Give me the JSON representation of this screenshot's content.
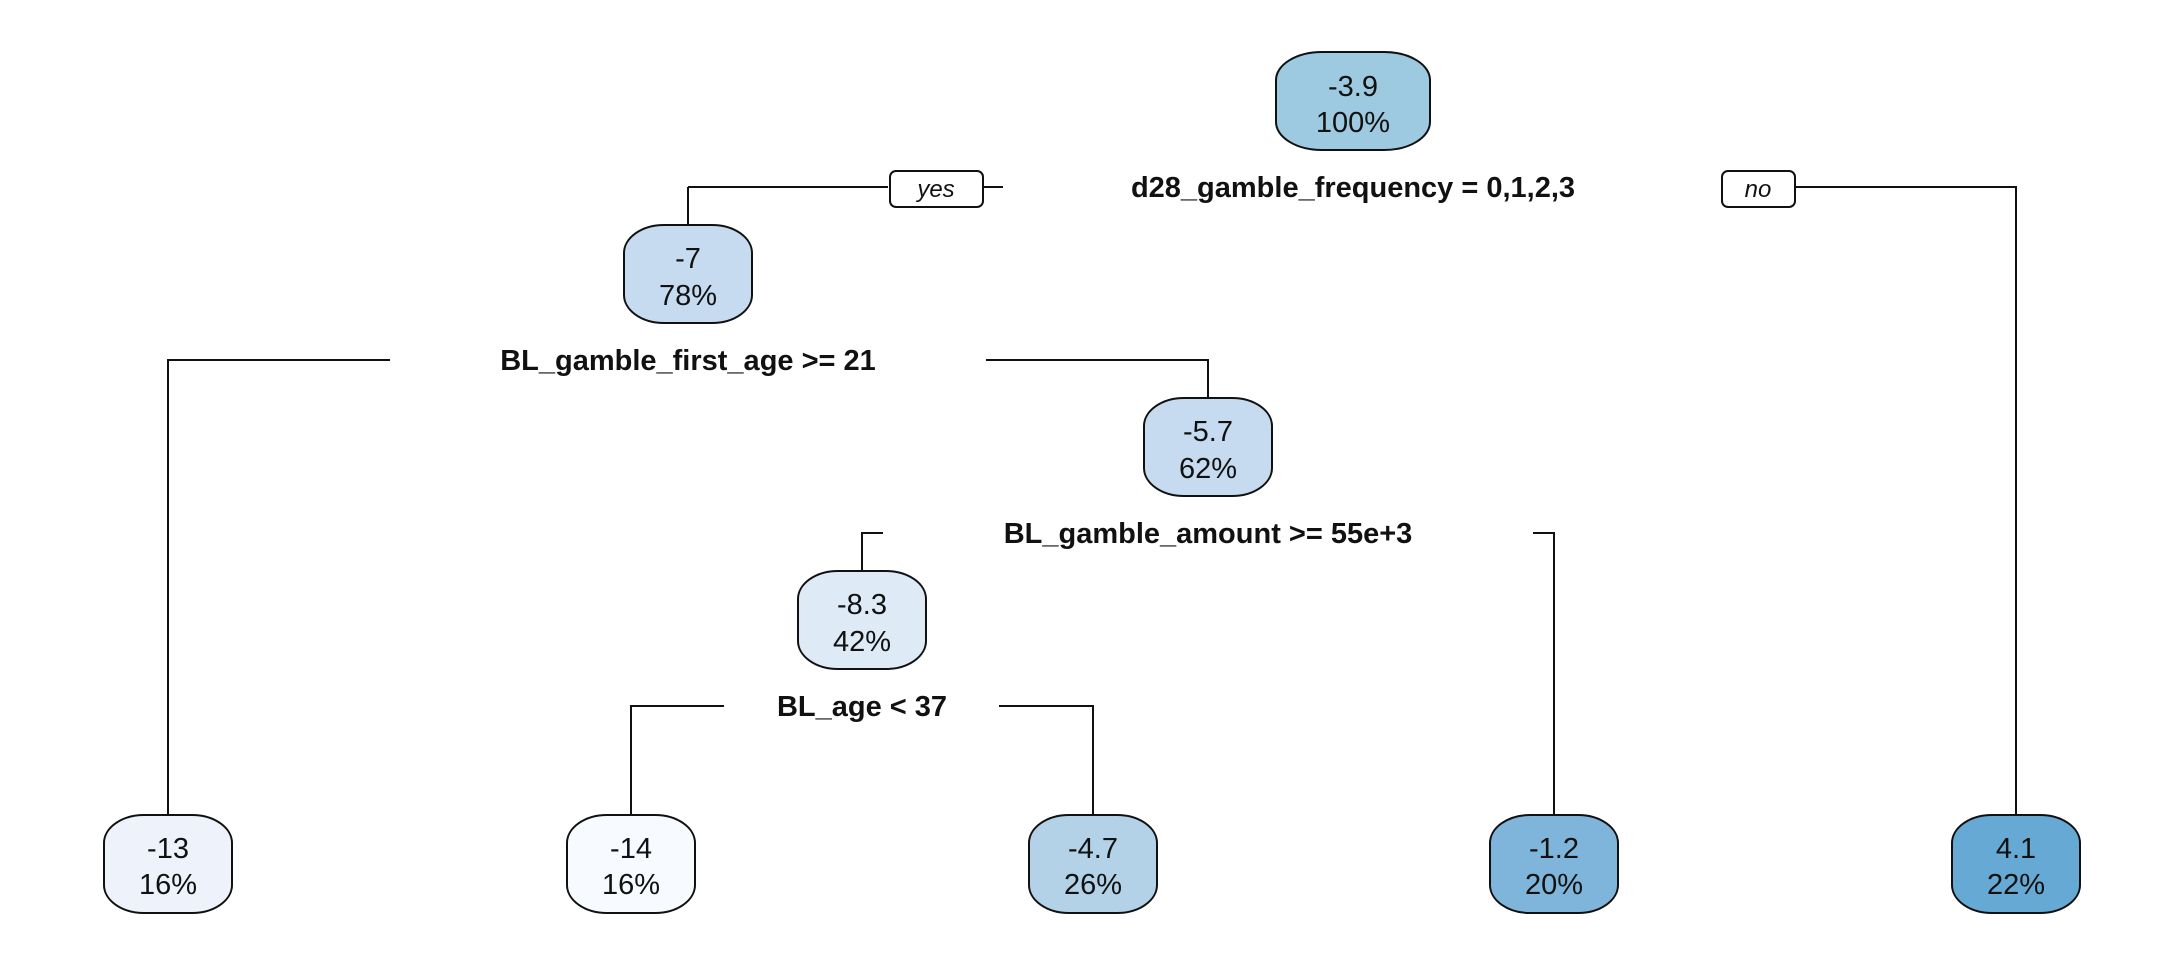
{
  "diagram": {
    "type": "regression-tree",
    "nodes": [
      {
        "value": "-3.9",
        "percent": "100%",
        "color": "#9ecae1"
      },
      {
        "value": "-7",
        "percent": "78%",
        "color": "#c6dbef"
      },
      {
        "value": "-5.7",
        "percent": "62%",
        "color": "#c6dbef"
      },
      {
        "value": "-8.3",
        "percent": "42%",
        "color": "#deebf7"
      },
      {
        "value": "-13",
        "percent": "16%",
        "color": "#eef3fb"
      },
      {
        "value": "-14",
        "percent": "16%",
        "color": "#f7fbff"
      },
      {
        "value": "-4.7",
        "percent": "26%",
        "color": "#b3d2e8"
      },
      {
        "value": "-1.2",
        "percent": "20%",
        "color": "#7fb5da"
      },
      {
        "value": "4.1",
        "percent": "22%",
        "color": "#66a9d4"
      }
    ],
    "splits": [
      {
        "label": "d28_gamble_frequency = 0,1,2,3"
      },
      {
        "label": "BL_gamble_first_age >= 21"
      },
      {
        "label": "BL_gamble_amount >= 55e+3"
      },
      {
        "label": "BL_age < 37"
      }
    ],
    "branch_labels": {
      "yes": "yes",
      "no": "no"
    }
  }
}
